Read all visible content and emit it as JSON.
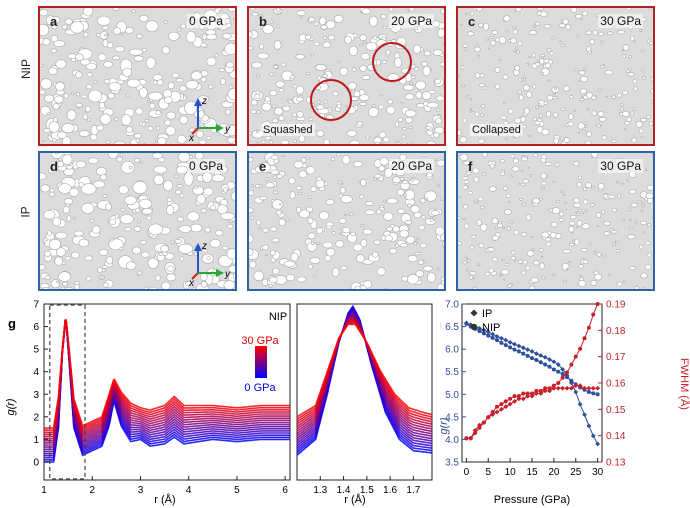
{
  "row_labels": {
    "nip": "NIP",
    "ip": "IP"
  },
  "panels": [
    {
      "label": "a",
      "pressure": "0 GPa",
      "note": ""
    },
    {
      "label": "b",
      "pressure": "20 GPa",
      "note": "Squashed"
    },
    {
      "label": "c",
      "pressure": "30 GPa",
      "note": "Collapsed"
    },
    {
      "label": "d",
      "pressure": "0 GPa",
      "note": ""
    },
    {
      "label": "e",
      "pressure": "20 GPa",
      "note": ""
    },
    {
      "label": "f",
      "pressure": "30 GPa",
      "note": ""
    }
  ],
  "axes_triad": {
    "z": "z",
    "y": "y",
    "x": "x"
  },
  "colors": {
    "nip_border": "#b22222",
    "ip_border": "#2f62a8",
    "ip_series": "#2f4f9c",
    "nip_series": "#c8202a",
    "grad_high": "#ff0000",
    "grad_low": "#0000ff"
  },
  "chart_data": [
    {
      "panel": "g",
      "type": "line",
      "annotation": "NIP",
      "colorbar": {
        "top": "30 GPa",
        "bottom": "0 GPa"
      },
      "xlabel": "r (Å)",
      "ylabel": "g(r)",
      "xlim": [
        1,
        6.1
      ],
      "ylim": [
        -0.8,
        7
      ],
      "xticks": [
        "1",
        "2",
        "3",
        "4",
        "5",
        "6"
      ],
      "yticks": [
        "0",
        "1",
        "2",
        "3",
        "4",
        "5",
        "6",
        "7"
      ],
      "series": [
        {
          "pressure_gpa": 0,
          "x": [
            1.0,
            1.2,
            1.3,
            1.38,
            1.45,
            1.52,
            1.62,
            1.8,
            2.0,
            2.2,
            2.35,
            2.45,
            2.6,
            2.8,
            3.0,
            3.2,
            3.5,
            3.7,
            3.9,
            4.2,
            4.5,
            5.0,
            5.5,
            6.1
          ],
          "y": [
            0.0,
            0.0,
            1.5,
            4.8,
            6.4,
            4.5,
            1.5,
            0.3,
            0.5,
            0.7,
            1.6,
            2.7,
            1.6,
            0.9,
            1.0,
            0.7,
            0.8,
            1.1,
            0.8,
            0.9,
            1.0,
            0.9,
            1.0,
            1.0
          ]
        },
        {
          "pressure_gpa": 30,
          "x": [
            1.0,
            1.2,
            1.3,
            1.38,
            1.45,
            1.52,
            1.62,
            1.8,
            2.0,
            2.2,
            2.35,
            2.45,
            2.6,
            2.8,
            3.0,
            3.2,
            3.5,
            3.7,
            3.9,
            4.2,
            4.5,
            5.0,
            5.5,
            6.1
          ],
          "y": [
            1.5,
            1.5,
            2.9,
            5.0,
            6.5,
            5.0,
            2.8,
            1.6,
            1.8,
            2.0,
            3.0,
            3.7,
            3.1,
            2.6,
            2.4,
            2.3,
            2.5,
            2.9,
            2.5,
            2.5,
            2.5,
            2.4,
            2.5,
            2.5
          ]
        }
      ]
    },
    {
      "panel": "g-inset",
      "type": "line",
      "xlabel": "r (Å)",
      "xlim": [
        1.2,
        1.78
      ],
      "xticks": [
        "1.3",
        "1.4",
        "1.5",
        "1.6",
        "1.7"
      ],
      "series": [
        {
          "pressure_gpa": 0,
          "x": [
            1.2,
            1.28,
            1.33,
            1.38,
            1.42,
            1.44,
            1.47,
            1.52,
            1.58,
            1.64,
            1.7,
            1.78
          ],
          "y": [
            0.3,
            1.0,
            3.0,
            5.3,
            6.6,
            6.9,
            6.3,
            4.3,
            2.2,
            1.0,
            0.5,
            0.4
          ]
        },
        {
          "pressure_gpa": 30,
          "x": [
            1.2,
            1.28,
            1.33,
            1.38,
            1.42,
            1.45,
            1.5,
            1.56,
            1.62,
            1.68,
            1.74,
            1.78
          ],
          "y": [
            2.0,
            2.5,
            4.0,
            5.5,
            6.1,
            6.1,
            5.3,
            4.0,
            3.0,
            2.4,
            2.2,
            2.1
          ]
        }
      ]
    },
    {
      "panel": "h",
      "type": "line",
      "xlabel": "Pressure (GPa)",
      "ylabel_left": "g(r)",
      "ylabel_right": "FWHM (Å)",
      "xlim": [
        -1,
        31
      ],
      "ylim_left": [
        3.5,
        7.0
      ],
      "ylim_right": [
        0.13,
        0.19
      ],
      "xticks": [
        "0",
        "5",
        "10",
        "15",
        "20",
        "25",
        "30"
      ],
      "yticks_left": [
        "3.5",
        "4.0",
        "4.5",
        "5.0",
        "5.5",
        "6.0",
        "6.5",
        "7.0"
      ],
      "yticks_right": [
        "0.13",
        "0.14",
        "0.15",
        "0.16",
        "0.17",
        "0.18",
        "0.19"
      ],
      "legend": {
        "position": "top-left",
        "items": [
          {
            "name": "IP",
            "marker": "diamond"
          },
          {
            "name": "NIP",
            "marker": "circle"
          }
        ]
      },
      "x": [
        0,
        1,
        2,
        3,
        4,
        5,
        6,
        7,
        8,
        9,
        10,
        11,
        12,
        13,
        14,
        15,
        16,
        17,
        18,
        19,
        20,
        21,
        22,
        23,
        24,
        25,
        26,
        27,
        28,
        29,
        30
      ],
      "series": [
        {
          "name": "IP",
          "axis": "left",
          "values": [
            6.58,
            6.54,
            6.5,
            6.46,
            6.42,
            6.38,
            6.33,
            6.28,
            6.24,
            6.2,
            6.15,
            6.11,
            6.07,
            6.03,
            5.99,
            5.95,
            5.9,
            5.86,
            5.82,
            5.77,
            5.72,
            5.66,
            5.55,
            5.42,
            5.25,
            5.05,
            4.78,
            4.55,
            4.3,
            4.08,
            3.9
          ]
        },
        {
          "name": "NIP",
          "axis": "left",
          "values": [
            6.56,
            6.5,
            6.45,
            6.4,
            6.35,
            6.3,
            6.25,
            6.2,
            6.14,
            6.09,
            6.04,
            5.99,
            5.95,
            5.9,
            5.85,
            5.8,
            5.76,
            5.71,
            5.66,
            5.61,
            5.55,
            5.5,
            5.45,
            5.38,
            5.3,
            5.22,
            5.15,
            5.1,
            5.05,
            5.02,
            5.0
          ]
        },
        {
          "name": "IP",
          "axis": "right",
          "values": [
            0.139,
            0.139,
            0.142,
            0.144,
            0.145,
            0.147,
            0.148,
            0.149,
            0.15,
            0.151,
            0.152,
            0.153,
            0.154,
            0.154,
            0.155,
            0.155,
            0.156,
            0.156,
            0.157,
            0.157,
            0.158,
            0.158,
            0.158,
            0.158,
            0.158,
            0.159,
            0.159,
            0.158,
            0.158,
            0.158,
            0.158
          ]
        },
        {
          "name": "NIP",
          "axis": "right",
          "values": [
            0.139,
            0.139,
            0.141,
            0.143,
            0.145,
            0.147,
            0.149,
            0.151,
            0.152,
            0.153,
            0.154,
            0.155,
            0.155,
            0.156,
            0.156,
            0.156,
            0.157,
            0.157,
            0.158,
            0.158,
            0.159,
            0.16,
            0.162,
            0.164,
            0.167,
            0.17,
            0.173,
            0.177,
            0.181,
            0.186,
            0.19
          ]
        }
      ]
    }
  ]
}
